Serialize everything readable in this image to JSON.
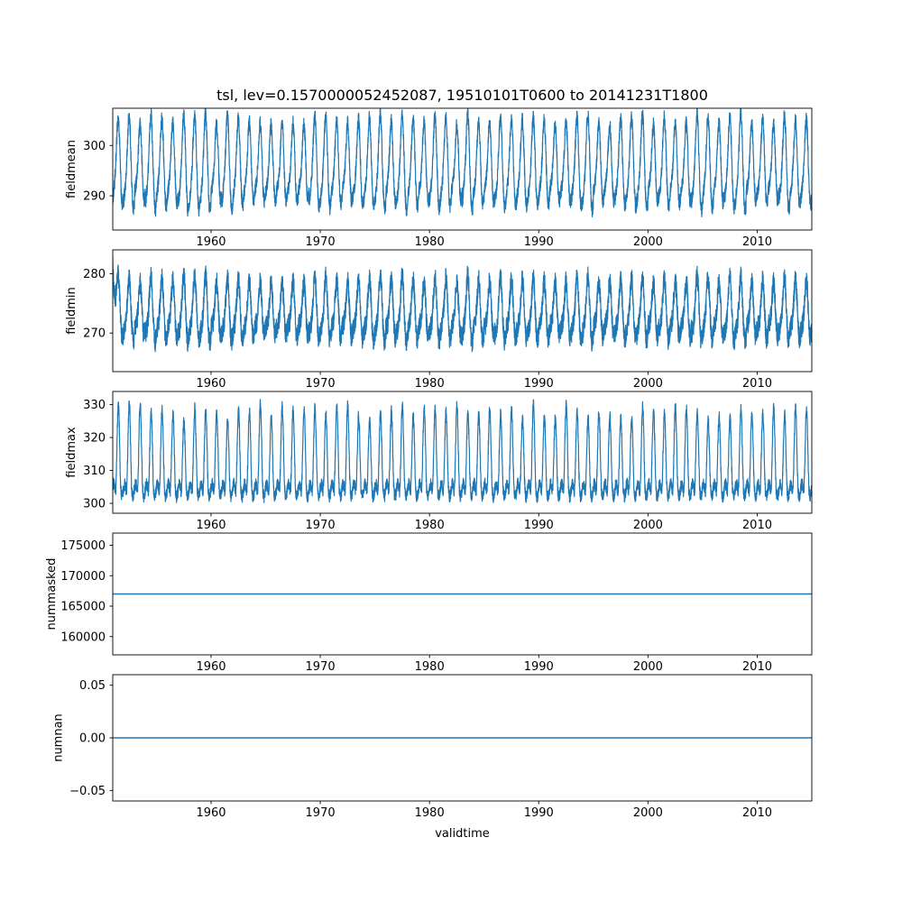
{
  "figure": {
    "title": "tsl, lev=0.1570000052452087, 19510101T0600 to 20141231T1800",
    "xlabel": "validtime",
    "line_color": "#1f77b4",
    "background": "#ffffff",
    "time_range": [
      "19510101T0600",
      "20141231T1800"
    ]
  },
  "chart_data": [
    {
      "type": "line",
      "ylabel": "fieldmean",
      "x_range": [
        1951,
        2015
      ],
      "ylim": [
        283.2,
        307.4
      ],
      "yticks": [
        290,
        300
      ],
      "ytick_labels": [
        "290",
        "300"
      ],
      "xticks": [
        1960,
        1970,
        1980,
        1990,
        2000,
        2010
      ],
      "xtick_labels": [
        "1960",
        "1970",
        "1980",
        "1990",
        "2000",
        "2010"
      ],
      "series": [
        {
          "name": "fieldmean",
          "kind": "seasonal",
          "mean": 295.5,
          "annual_amplitude": 8.2,
          "semiannual_amplitude": 2.0,
          "noise": 1.5,
          "approx_min": 285,
          "approx_max": 307
        }
      ]
    },
    {
      "type": "line",
      "ylabel": "fieldmin",
      "x_range": [
        1951,
        2015
      ],
      "ylim": [
        263.5,
        284.0
      ],
      "yticks": [
        270,
        280
      ],
      "ytick_labels": [
        "270",
        "280"
      ],
      "xticks": [
        1960,
        1970,
        1980,
        1990,
        2000,
        2010
      ],
      "xtick_labels": [
        "1960",
        "1970",
        "1980",
        "1990",
        "2000",
        "2010"
      ],
      "series": [
        {
          "name": "fieldmin",
          "kind": "seasonal",
          "mean": 273.3,
          "annual_amplitude": 4.6,
          "semiannual_amplitude": 1.4,
          "noise": 1.8,
          "initial_spike": 11,
          "approx_min": 263,
          "approx_max": 285
        }
      ]
    },
    {
      "type": "line",
      "ylabel": "fieldmax",
      "x_range": [
        1951,
        2015
      ],
      "ylim": [
        297.0,
        334.0
      ],
      "yticks": [
        300,
        310,
        320,
        330
      ],
      "ytick_labels": [
        "300",
        "310",
        "320",
        "330"
      ],
      "xticks": [
        1960,
        1970,
        1980,
        1990,
        2000,
        2010
      ],
      "xtick_labels": [
        "1960",
        "1970",
        "1980",
        "1990",
        "2000",
        "2010"
      ],
      "series": [
        {
          "name": "fieldmax",
          "kind": "seasonal_peaks",
          "base": 305,
          "peak_amplitude": 24,
          "semiannual_amplitude": 2.2,
          "noise": 1.8,
          "approx_min": 300,
          "approx_max": 331
        }
      ]
    },
    {
      "type": "line",
      "ylabel": "nummasked",
      "x_range": [
        1951,
        2015
      ],
      "ylim": [
        157000,
        177000
      ],
      "yticks": [
        160000,
        165000,
        170000,
        175000
      ],
      "ytick_labels": [
        "160000",
        "165000",
        "170000",
        "175000"
      ],
      "xticks": [
        1960,
        1970,
        1980,
        1990,
        2000,
        2010
      ],
      "xtick_labels": [
        "1960",
        "1970",
        "1980",
        "1990",
        "2000",
        "2010"
      ],
      "series": [
        {
          "name": "nummasked",
          "kind": "constant",
          "value": 167000
        }
      ]
    },
    {
      "type": "line",
      "ylabel": "numnan",
      "x_range": [
        1951,
        2015
      ],
      "ylim": [
        -0.06,
        0.06
      ],
      "yticks": [
        -0.05,
        0.0,
        0.05
      ],
      "ytick_labels": [
        "−0.05",
        "0.00",
        "0.05"
      ],
      "xticks": [
        1960,
        1970,
        1980,
        1990,
        2000,
        2010
      ],
      "xtick_labels": [
        "1960",
        "1970",
        "1980",
        "1990",
        "2000",
        "2010"
      ],
      "series": [
        {
          "name": "numnan",
          "kind": "constant",
          "value": 0
        }
      ]
    }
  ]
}
